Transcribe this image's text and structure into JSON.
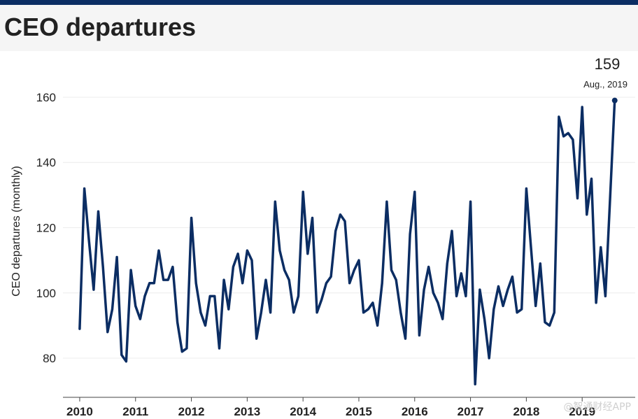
{
  "header": {
    "title": "CEO departures"
  },
  "watermark": "@智通财经APP",
  "chart_data": {
    "type": "line",
    "title": "CEO departures",
    "xlabel": "",
    "ylabel": "CEO departures (monthly)",
    "ylim": [
      68,
      172
    ],
    "yticks": [
      80,
      100,
      120,
      140,
      160
    ],
    "xlim": [
      2009.7,
      2019.95
    ],
    "xticks": [
      {
        "value": 2010,
        "label": "2010"
      },
      {
        "value": 2011,
        "label": "2011"
      },
      {
        "value": 2012,
        "label": "2012"
      },
      {
        "value": 2013,
        "label": "2013"
      },
      {
        "value": 2014,
        "label": "2014"
      },
      {
        "value": 2015,
        "label": "2015"
      },
      {
        "value": 2016,
        "label": "2016"
      },
      {
        "value": 2017,
        "label": "2017"
      },
      {
        "value": 2018,
        "label": "2018"
      },
      {
        "value": 2019,
        "label": "2019"
      }
    ],
    "x_start": 2010.0,
    "x_step": 0.0833333,
    "colors": {
      "line": "#0b2d63",
      "grid": "#ececec",
      "text": "#222222",
      "axis": "#444444"
    },
    "series": [
      {
        "name": "CEO departures",
        "values": [
          89,
          132,
          116,
          101,
          125,
          108,
          88,
          95,
          111,
          81,
          79,
          107,
          96,
          92,
          99,
          103,
          103,
          113,
          104,
          104,
          108,
          91,
          82,
          83,
          123,
          103,
          94,
          90,
          99,
          99,
          83,
          104,
          95,
          108,
          112,
          103,
          113,
          110,
          86,
          94,
          104,
          94,
          128,
          113,
          107,
          104,
          94,
          99,
          131,
          112,
          123,
          94,
          98,
          103,
          105,
          119,
          124,
          122,
          103,
          107,
          110,
          94,
          95,
          97,
          90,
          103,
          128,
          107,
          104,
          94,
          86,
          118,
          131,
          87,
          101,
          108,
          100,
          97,
          92,
          109,
          119,
          99,
          106,
          99,
          128,
          72,
          101,
          92,
          80,
          95,
          102,
          96,
          101,
          105,
          94,
          95,
          132,
          114,
          96,
          109,
          91,
          90,
          94,
          154,
          148,
          149,
          147,
          129,
          157,
          124,
          135,
          97,
          114,
          99,
          129,
          159
        ]
      }
    ],
    "annotation": {
      "value": "159",
      "label": "Aug., 2019"
    }
  }
}
